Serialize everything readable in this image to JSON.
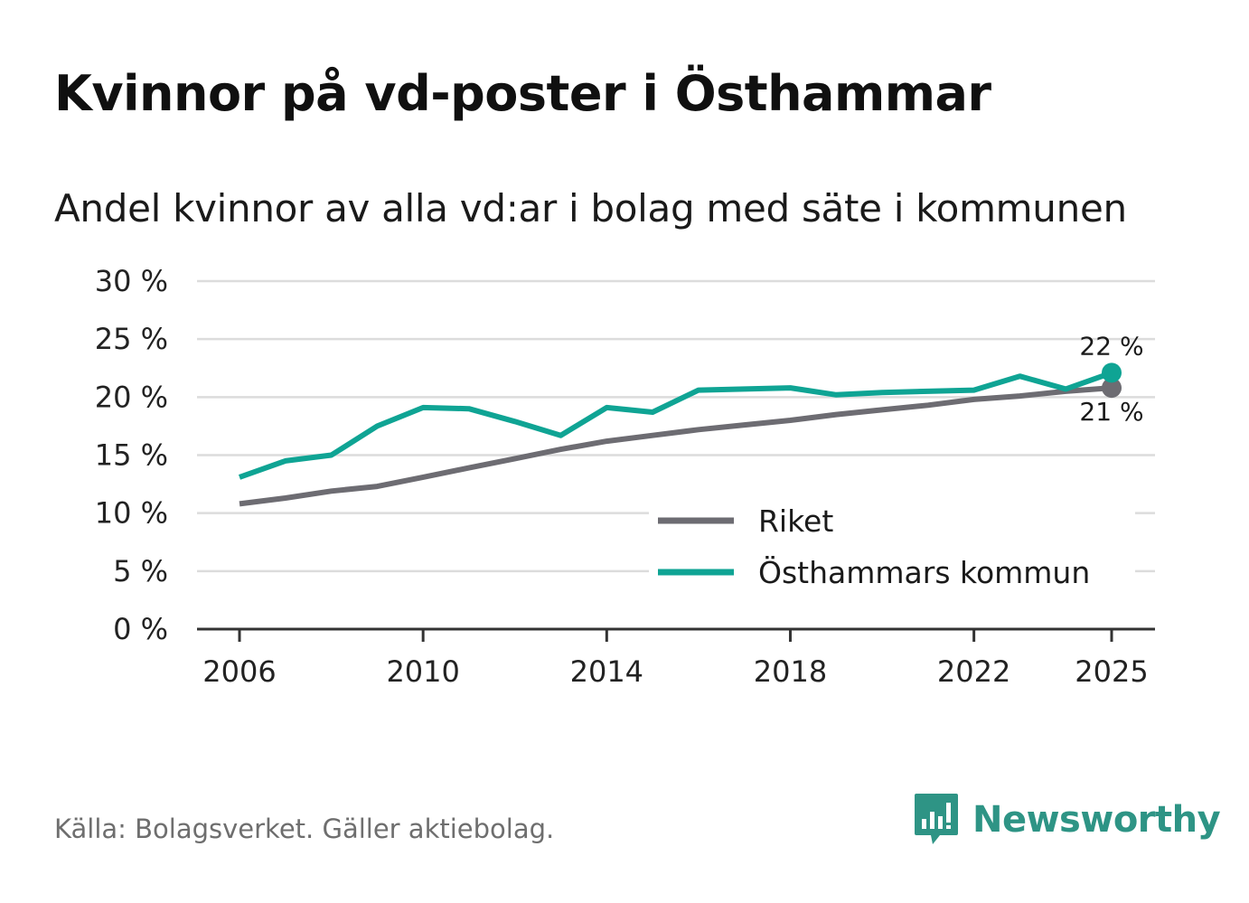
{
  "chart_data": {
    "type": "line",
    "title": "Kvinnor på vd-poster i Östhammar",
    "subtitle": "Andel kvinnor av alla vd:ar i bolag med säte i kommunen",
    "xlabel": "",
    "ylabel": "",
    "ylim": [
      0,
      30
    ],
    "yticks": [
      0,
      5,
      10,
      15,
      20,
      25,
      30
    ],
    "ytick_labels": [
      "0 %",
      "5 %",
      "10 %",
      "15 %",
      "20 %",
      "25 %",
      "30 %"
    ],
    "xlim": [
      2005,
      2026
    ],
    "xticks": [
      2006,
      2010,
      2014,
      2018,
      2022,
      2025
    ],
    "xtick_labels": [
      "2006",
      "2010",
      "2014",
      "2018",
      "2022",
      "2025"
    ],
    "grid": true,
    "legend_position": "bottom-right",
    "x": [
      2006,
      2007,
      2008,
      2009,
      2010,
      2011,
      2012,
      2013,
      2014,
      2015,
      2016,
      2017,
      2018,
      2019,
      2020,
      2021,
      2022,
      2023,
      2024,
      2025
    ],
    "series": [
      {
        "name": "Riket",
        "color": "#6d6c72",
        "values": [
          10.8,
          11.3,
          11.9,
          12.3,
          13.1,
          13.9,
          14.7,
          15.5,
          16.2,
          16.7,
          17.2,
          17.6,
          18.0,
          18.5,
          18.9,
          19.3,
          19.8,
          20.1,
          20.5,
          20.8
        ],
        "end_label": "21 %"
      },
      {
        "name": "Östhammars kommun",
        "color": "#0fa494",
        "values": [
          13.1,
          14.5,
          15.0,
          17.5,
          19.1,
          19.0,
          17.9,
          16.7,
          19.1,
          18.7,
          20.6,
          20.7,
          20.8,
          20.2,
          20.4,
          20.5,
          20.6,
          21.8,
          20.7,
          22.1
        ],
        "end_label": "22 %"
      }
    ]
  },
  "footer": {
    "source": "Källa: Bolagsverket. Gäller aktiebolag.",
    "brand": "Newsworthy",
    "brand_color": "#2e9485"
  }
}
